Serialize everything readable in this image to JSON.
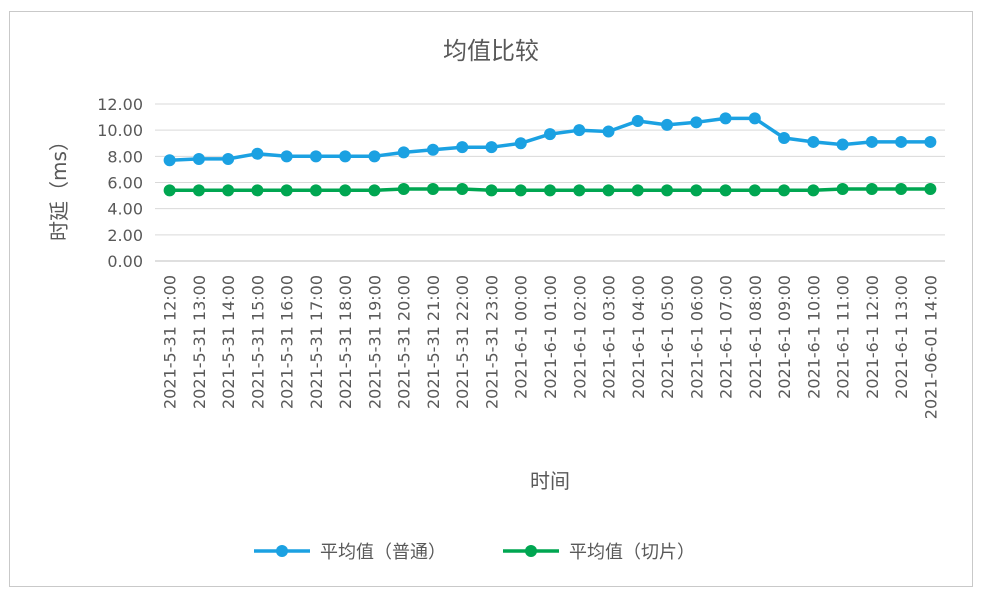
{
  "chart_data": {
    "type": "line",
    "title": "均值比较",
    "xlabel": "时间",
    "ylabel": "时延（ms）",
    "ylim": [
      0,
      12
    ],
    "yticks": [
      "0.00",
      "2.00",
      "4.00",
      "6.00",
      "8.00",
      "10.00",
      "12.00"
    ],
    "grid": true,
    "legend": "bottom",
    "categories": [
      "2021-5-31 12:00",
      "2021-5-31 13:00",
      "2021-5-31 14:00",
      "2021-5-31 15:00",
      "2021-5-31 16:00",
      "2021-5-31 17:00",
      "2021-5-31 18:00",
      "2021-5-31 19:00",
      "2021-5-31 20:00",
      "2021-5-31 21:00",
      "2021-5-31 22:00",
      "2021-5-31 23:00",
      "2021-6-1 00:00",
      "2021-6-1 01:00",
      "2021-6-1 02:00",
      "2021-6-1 03:00",
      "2021-6-1 04:00",
      "2021-6-1 05:00",
      "2021-6-1 06:00",
      "2021-6-1 07:00",
      "2021-6-1 08:00",
      "2021-6-1 09:00",
      "2021-6-1 10:00",
      "2021-6-1 11:00",
      "2021-6-1 12:00",
      "2021-6-1 13:00",
      "2021-06-01 14:00"
    ],
    "series": [
      {
        "name": "平均值（普通）",
        "color": "#1ba1e2",
        "values": [
          7.7,
          7.8,
          7.8,
          8.2,
          8.0,
          8.0,
          8.0,
          8.0,
          8.3,
          8.5,
          8.7,
          8.7,
          9.0,
          9.7,
          10.0,
          9.9,
          10.7,
          10.4,
          10.6,
          10.9,
          10.9,
          9.4,
          9.1,
          8.9,
          9.1,
          9.1,
          9.1
        ]
      },
      {
        "name": "平均值（切片）",
        "color": "#00a651",
        "values": [
          5.4,
          5.4,
          5.4,
          5.4,
          5.4,
          5.4,
          5.4,
          5.4,
          5.5,
          5.5,
          5.5,
          5.4,
          5.4,
          5.4,
          5.4,
          5.4,
          5.4,
          5.4,
          5.4,
          5.4,
          5.4,
          5.4,
          5.4,
          5.5,
          5.5,
          5.5,
          5.5
        ]
      }
    ]
  }
}
